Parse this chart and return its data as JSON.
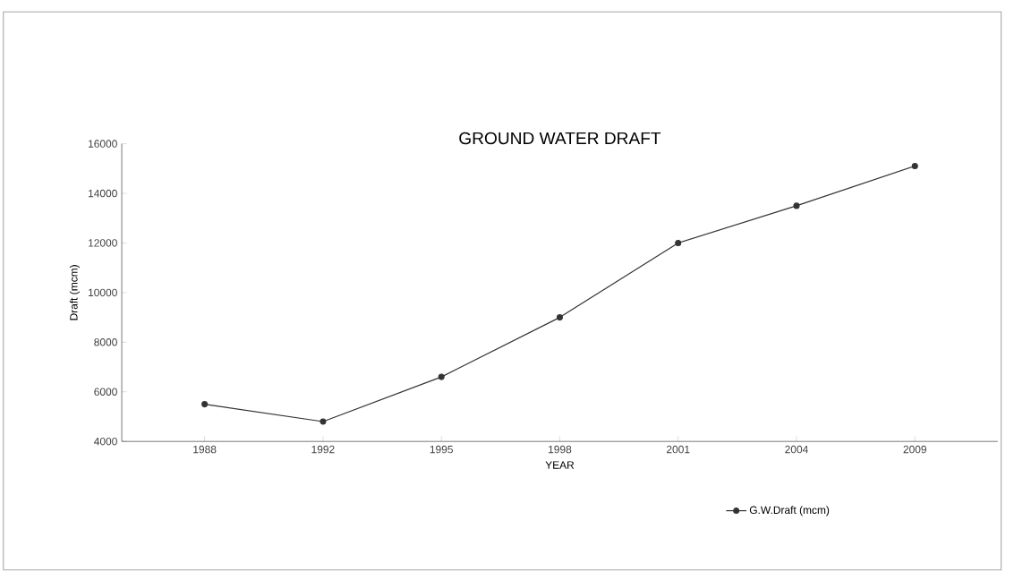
{
  "chart_data": {
    "type": "line",
    "title": "GROUND WATER DRAFT",
    "xlabel": "YEAR",
    "ylabel": "Draft (mcm)",
    "categories": [
      "1988",
      "1992",
      "1995",
      "1998",
      "2001",
      "2004",
      "2009"
    ],
    "series": [
      {
        "name": "G.W.Draft (mcm)",
        "color": "#333333",
        "values": [
          5500,
          4800,
          6600,
          9000,
          12000,
          13500,
          15100
        ]
      }
    ],
    "ylim": [
      4000,
      16000
    ],
    "yticks": [
      4000,
      6000,
      8000,
      10000,
      12000,
      14000,
      16000
    ],
    "grid": false,
    "legend": "bottom",
    "marker": "circle",
    "line_style": "solid"
  }
}
